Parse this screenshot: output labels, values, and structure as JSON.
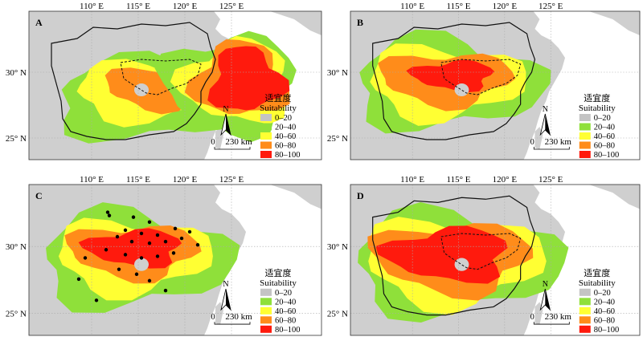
{
  "legend": {
    "title_cn": "适宜度",
    "title_en": "Suitability",
    "classes": [
      {
        "label": "0–20",
        "color": "#c4c4c4"
      },
      {
        "label": "20–40",
        "color": "#8fe03a"
      },
      {
        "label": "40–60",
        "color": "#ffff33"
      },
      {
        "label": "60–80",
        "color": "#ff8c1a"
      },
      {
        "label": "80–100",
        "color": "#ff1a0d"
      }
    ]
  },
  "scale": {
    "text": "230 km",
    "zero": "0",
    "north": "N"
  },
  "axes": {
    "lon_labels": [
      "110° E",
      "115° E",
      "120° E",
      "125° E"
    ],
    "lat_labels": [
      "30° N",
      "25° N"
    ]
  },
  "panels": [
    {
      "id": "A",
      "label": "A"
    },
    {
      "id": "B",
      "label": "B"
    },
    {
      "id": "C",
      "label": "C"
    },
    {
      "id": "D",
      "label": "D"
    }
  ],
  "colors": {
    "sea": "#ffffff",
    "land": "#cfcfcf",
    "grid": "#aaaaaa"
  }
}
